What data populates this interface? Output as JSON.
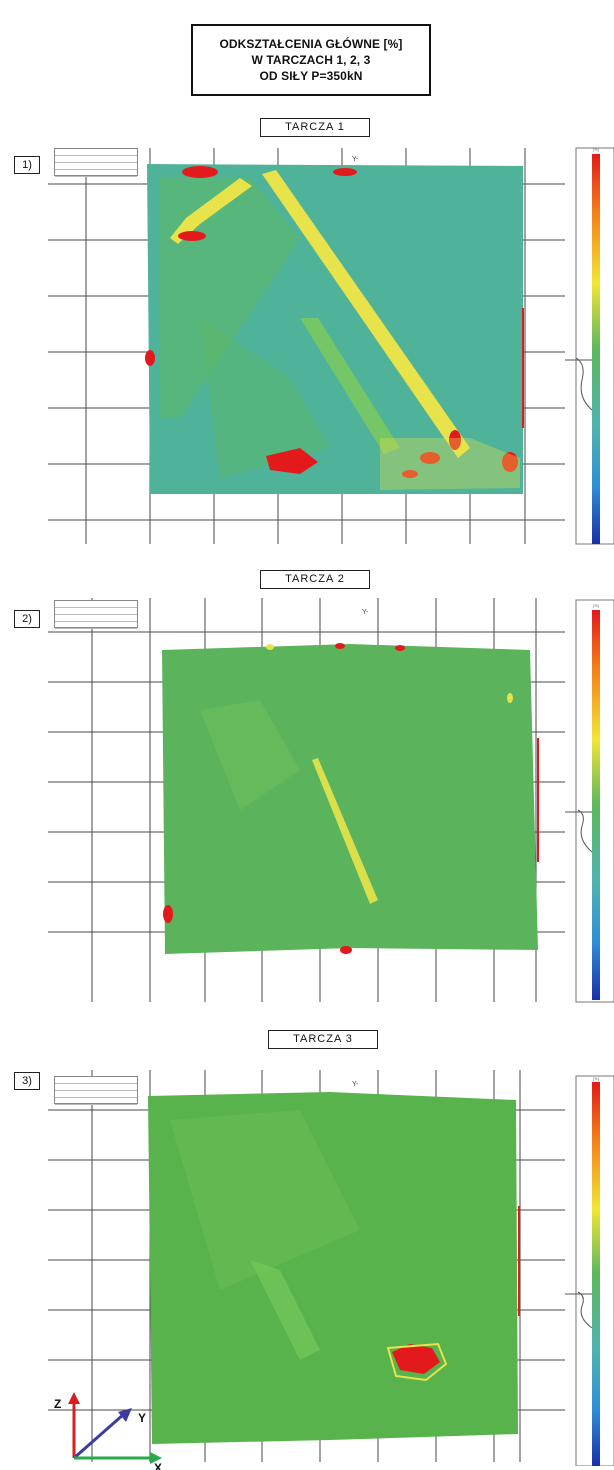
{
  "header": {
    "line1": "ODKSZTAŁCENIA GŁÓWNE [%]",
    "line2": "W TARCZACH 1, 2, 3",
    "line3": "OD SIŁY P=350kN"
  },
  "panels": [
    {
      "number": "1)",
      "label": "TARCZA 1",
      "axis_y": "Y-",
      "unit": "[%]"
    },
    {
      "number": "2)",
      "label": "TARCZA 2",
      "axis_y": "Y-",
      "unit": "[%]"
    },
    {
      "number": "3)",
      "label": "TARCZA 3",
      "axis_y": "Y-",
      "unit": "[%]"
    }
  ],
  "axes_legend": {
    "z": "Z",
    "y": "Y",
    "x": "X"
  },
  "colors": {
    "field_green": "#5cb85c",
    "field_teal": "#4fb3b0",
    "crack_yellow": "#e8e34a",
    "peak_red": "#e31a1c",
    "grid": "#3a3a3a",
    "z_axis": "#d62020",
    "y_axis": "#3c3ca0",
    "x_axis": "#2aa84a"
  }
}
